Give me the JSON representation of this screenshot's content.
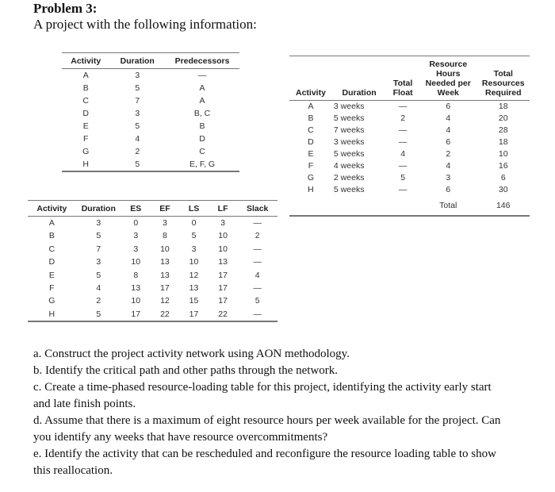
{
  "title": "Problem 3:",
  "subtitle": "A project with the following information:",
  "table1": {
    "headers": [
      "Activity",
      "Duration",
      "Predecessors"
    ],
    "rows": [
      [
        "A",
        "3",
        "—"
      ],
      [
        "B",
        "5",
        "A"
      ],
      [
        "C",
        "7",
        "A"
      ],
      [
        "D",
        "3",
        "B, C"
      ],
      [
        "E",
        "5",
        "B"
      ],
      [
        "F",
        "4",
        "D"
      ],
      [
        "G",
        "2",
        "C"
      ],
      [
        "H",
        "5",
        "E, F, G"
      ]
    ]
  },
  "table2": {
    "headers": [
      "Activity",
      "Duration",
      "ES",
      "EF",
      "LS",
      "LF",
      "Slack"
    ],
    "rows": [
      [
        "A",
        "3",
        "0",
        "3",
        "0",
        "3",
        "—"
      ],
      [
        "B",
        "5",
        "3",
        "8",
        "5",
        "10",
        "2"
      ],
      [
        "C",
        "7",
        "3",
        "10",
        "3",
        "10",
        "—"
      ],
      [
        "D",
        "3",
        "10",
        "13",
        "10",
        "13",
        "—"
      ],
      [
        "E",
        "5",
        "8",
        "13",
        "12",
        "17",
        "4"
      ],
      [
        "F",
        "4",
        "13",
        "17",
        "13",
        "17",
        "—"
      ],
      [
        "G",
        "2",
        "10",
        "12",
        "15",
        "17",
        "5"
      ],
      [
        "H",
        "5",
        "17",
        "22",
        "17",
        "22",
        "—"
      ]
    ]
  },
  "table3": {
    "headers": [
      "Activity",
      "Duration",
      "Total Float",
      "Resource Hours Needed per Week",
      "Total Resources Required"
    ],
    "rows": [
      [
        "A",
        "3 weeks",
        "—",
        "6",
        "18"
      ],
      [
        "B",
        "5 weeks",
        "2",
        "4",
        "20"
      ],
      [
        "C",
        "7 weeks",
        "—",
        "4",
        "28"
      ],
      [
        "D",
        "3 weeks",
        "—",
        "6",
        "18"
      ],
      [
        "E",
        "5 weeks",
        "4",
        "2",
        "10"
      ],
      [
        "F",
        "4 weeks",
        "—",
        "4",
        "16"
      ],
      [
        "G",
        "2 weeks",
        "5",
        "3",
        "6"
      ],
      [
        "H",
        "5 weeks",
        "—",
        "6",
        "30"
      ]
    ],
    "total_label": "Total",
    "total_value": "146"
  },
  "questions": [
    "a. Construct the project activity network using AON methodology.",
    "b.  Identify the critical path and other paths through the network.",
    "c. Create a time-phased resource-loading table for this project, identifying the activity early start and late finish points.",
    "d. Assume that there is a maximum of eight resource hours per week available for the project. Can you identify any weeks that have resource overcommitments?",
    "e. Identify the activity that can be rescheduled and reconfigure the resource loading table to show this reallocation."
  ]
}
